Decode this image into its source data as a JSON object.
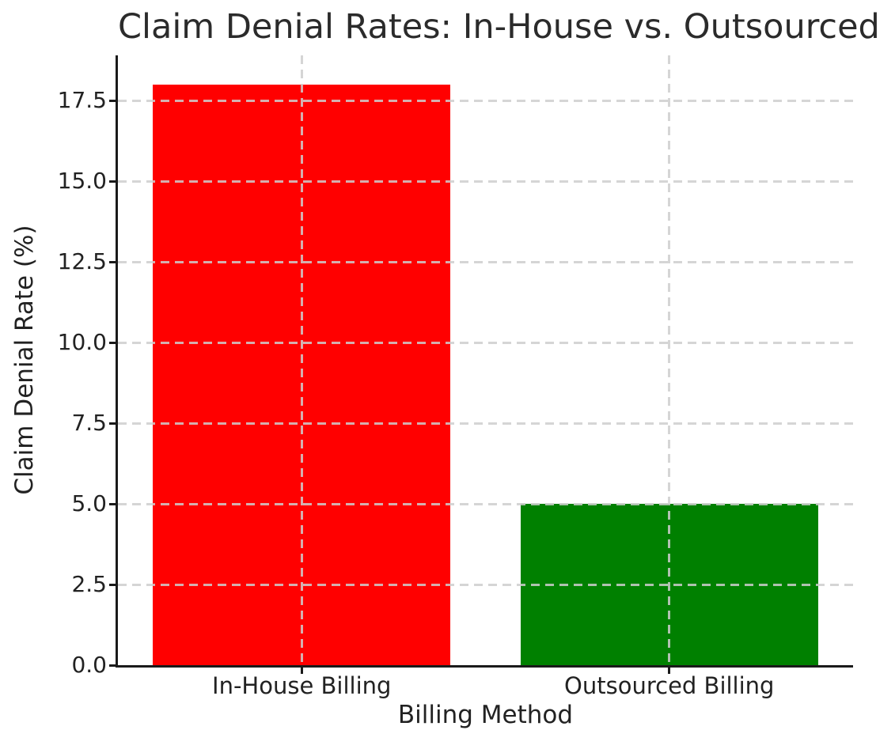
{
  "chart_data": {
    "type": "bar",
    "title": "Claim Denial Rates: In-House vs. Outsourced",
    "xlabel": "Billing Method",
    "ylabel": "Claim Denial Rate (%)",
    "categories": [
      "In-House Billing",
      "Outsourced Billing"
    ],
    "values": [
      18.0,
      5.0
    ],
    "bar_colors": [
      "#ff0000",
      "#008000"
    ],
    "ylim": [
      0,
      18.9
    ],
    "yticks": [
      0.0,
      2.5,
      5.0,
      7.5,
      10.0,
      12.5,
      15.0,
      17.5
    ],
    "ytick_labels": [
      "0.0",
      "2.5",
      "5.0",
      "7.5",
      "10.0",
      "12.5",
      "15.0",
      "17.5"
    ],
    "grid": {
      "axis": "both",
      "line_style": "dashed",
      "color": "#cecece"
    },
    "legend": "none",
    "background_color": "#ffffff",
    "spine_color": "#1a1a1a",
    "text_color": "#222222"
  }
}
